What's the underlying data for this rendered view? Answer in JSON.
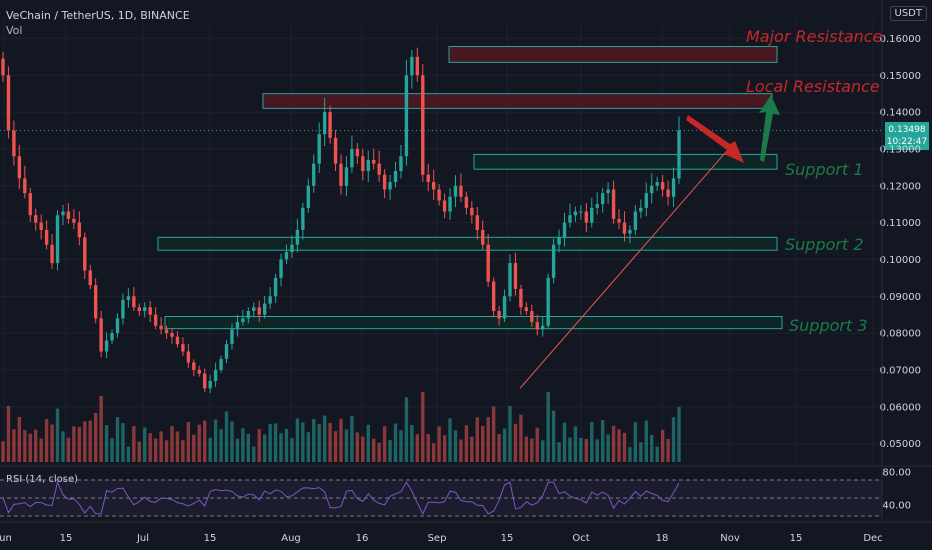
{
  "header": {
    "symbol": "VeChain / TetherUS, 1D, BINANCE",
    "volume_label": "Vol"
  },
  "currency_badge": "USDT",
  "last_price": {
    "value": "0.13498",
    "countdown": "10:22:47"
  },
  "rsi_label": "RSI (14, close)",
  "rsi_ticks": [
    "80.00",
    "40.00"
  ],
  "colors": {
    "background": "#131722",
    "up": "#26a69a",
    "down": "#ef5350",
    "annotation_red": "#c62828",
    "annotation_green": "#1b7a4a",
    "zone_fill_red": "#5a1a22",
    "zone_fill_green": "#0f2a26",
    "rsi_line": "#7e57c2"
  },
  "chart_data": {
    "type": "candlestick",
    "y_axis": {
      "range": [
        0.045,
        0.165
      ],
      "ticks": [
        "0.16000",
        "0.15000",
        "0.14000",
        "0.13000",
        "0.12000",
        "0.11000",
        "0.10000",
        "0.09000",
        "0.08000",
        "0.07000",
        "0.06000",
        "0.05000"
      ]
    },
    "x_axis": {
      "ticks": [
        "Jun",
        "15",
        "Jul",
        "15",
        "Aug",
        "16",
        "Sep",
        "15",
        "Oct",
        "18",
        "Nov",
        "15",
        "Dec"
      ]
    },
    "series_closes": [
      0.15,
      0.135,
      0.128,
      0.122,
      0.118,
      0.112,
      0.11,
      0.108,
      0.104,
      0.099,
      0.112,
      0.113,
      0.111,
      0.11,
      0.106,
      0.097,
      0.093,
      0.084,
      0.075,
      0.078,
      0.08,
      0.084,
      0.089,
      0.09,
      0.087,
      0.086,
      0.087,
      0.085,
      0.082,
      0.081,
      0.08,
      0.079,
      0.077,
      0.075,
      0.072,
      0.07,
      0.069,
      0.065,
      0.067,
      0.07,
      0.073,
      0.077,
      0.081,
      0.083,
      0.084,
      0.086,
      0.087,
      0.085,
      0.088,
      0.09,
      0.095,
      0.1,
      0.102,
      0.104,
      0.108,
      0.114,
      0.12,
      0.126,
      0.134,
      0.14,
      0.133,
      0.126,
      0.12,
      0.125,
      0.13,
      0.128,
      0.124,
      0.127,
      0.126,
      0.123,
      0.119,
      0.121,
      0.124,
      0.128,
      0.15,
      0.155,
      0.15,
      0.123,
      0.121,
      0.119,
      0.116,
      0.113,
      0.117,
      0.12,
      0.117,
      0.114,
      0.112,
      0.108,
      0.104,
      0.094,
      0.086,
      0.084,
      0.09,
      0.099,
      0.092,
      0.087,
      0.086,
      0.083,
      0.081,
      0.082,
      0.095,
      0.104,
      0.106,
      0.11,
      0.112,
      0.113,
      0.113,
      0.11,
      0.114,
      0.115,
      0.118,
      0.119,
      0.111,
      0.11,
      0.107,
      0.108,
      0.113,
      0.114,
      0.118,
      0.12,
      0.121,
      0.119,
      0.117,
      0.122,
      0.135
    ],
    "zones": [
      {
        "label": "Major Resistance",
        "from": 0.1535,
        "to": 0.1578,
        "kind": "resistance"
      },
      {
        "label": "Local Resistance",
        "from": 0.141,
        "to": 0.145,
        "kind": "resistance"
      },
      {
        "label": "Support 1",
        "from": 0.1245,
        "to": 0.1285,
        "kind": "support"
      },
      {
        "label": "Support 2",
        "from": 0.1025,
        "to": 0.106,
        "kind": "support"
      },
      {
        "label": "Support 3",
        "from": 0.0812,
        "to": 0.0845,
        "kind": "support"
      }
    ],
    "trendline": {
      "from_price": 0.065,
      "to_price": 0.132
    }
  }
}
